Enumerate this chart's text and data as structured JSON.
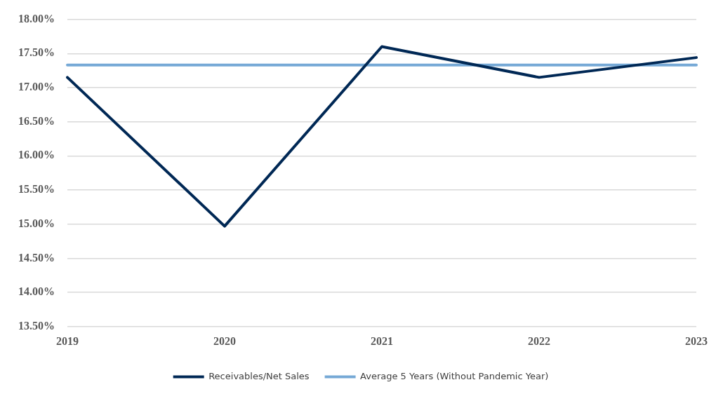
{
  "chart_data": {
    "type": "line",
    "categories": [
      "2019",
      "2020",
      "2021",
      "2022",
      "2023"
    ],
    "series": [
      {
        "name": "Receivables/Net Sales",
        "color": "#002855",
        "values": [
          17.15,
          14.97,
          17.6,
          17.15,
          17.44
        ]
      },
      {
        "name": "Average 5 Years (Without Pandemic Year)",
        "color": "#76a9d6",
        "values": [
          17.33,
          17.33,
          17.33,
          17.33,
          17.33
        ]
      }
    ],
    "ylim": [
      13.5,
      18
    ],
    "yticks": [
      {
        "value": 13.5,
        "label": "13.50%"
      },
      {
        "value": 14,
        "label": "14.00%"
      },
      {
        "value": 14.5,
        "label": "14.50%"
      },
      {
        "value": 15,
        "label": "15.00%"
      },
      {
        "value": 15.5,
        "label": "15.50%"
      },
      {
        "value": 16,
        "label": "16.00%"
      },
      {
        "value": 16.5,
        "label": "16.50%"
      },
      {
        "value": 17,
        "label": "17.00%"
      },
      {
        "value": 17.5,
        "label": "17.50%"
      },
      {
        "value": 18,
        "label": "18.00%"
      }
    ],
    "grid": "y",
    "legend": "bottom",
    "marker": "none",
    "line_style": "solid"
  }
}
